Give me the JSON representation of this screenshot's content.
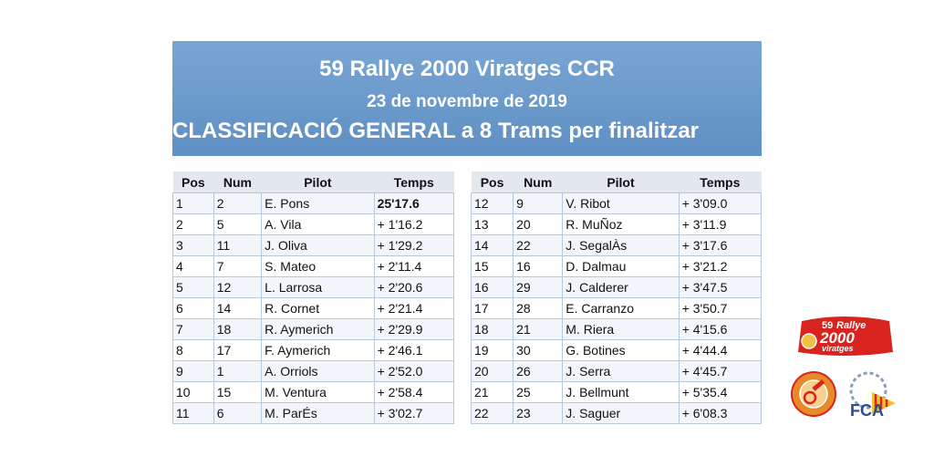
{
  "banner": {
    "title": "59 Rallye 2000 Viratges CCR",
    "date": "23 de novembre de 2019",
    "subtitle": "CLASSIFICACIÓ GENERAL a 8 Trams per finalitzar"
  },
  "columns": [
    "Pos",
    "Num",
    "Pilot",
    "Temps"
  ],
  "left_rows": [
    [
      "1",
      "2",
      "E. Pons",
      "25'17.6"
    ],
    [
      "2",
      "5",
      "A. Vila",
      "+ 1'16.2"
    ],
    [
      "3",
      "11",
      "J. Oliva",
      "+ 1'29.2"
    ],
    [
      "4",
      "7",
      "S. Mateo",
      "+ 2'11.4"
    ],
    [
      "5",
      "12",
      "L. Larrosa",
      "+ 2'20.6"
    ],
    [
      "6",
      "14",
      "R. Cornet",
      "+ 2'21.4"
    ],
    [
      "7",
      "18",
      "R. Aymerich",
      "+ 2'29.9"
    ],
    [
      "8",
      "17",
      "F. Aymerich",
      "+ 2'46.1"
    ],
    [
      "9",
      "1",
      "A. Orriols",
      "+ 2'52.0"
    ],
    [
      "10",
      "15",
      "M. Ventura",
      "+ 2'58.4"
    ],
    [
      "11",
      "6",
      "M. ParÉs",
      "+ 3'02.7"
    ]
  ],
  "right_rows": [
    [
      "12",
      "9",
      "V. Ribot",
      "+ 3'09.0"
    ],
    [
      "13",
      "20",
      "R. MuÑoz",
      "+ 3'11.9"
    ],
    [
      "14",
      "22",
      "J. SegalÀs",
      "+ 3'17.6"
    ],
    [
      "15",
      "16",
      "D. Dalmau",
      "+ 3'21.2"
    ],
    [
      "16",
      "29",
      "J. Calderer",
      "+ 3'47.5"
    ],
    [
      "17",
      "28",
      "E. Carranzo",
      "+ 3'50.7"
    ],
    [
      "18",
      "21",
      "M. Riera",
      "+ 4'15.6"
    ],
    [
      "19",
      "30",
      "G. Botines",
      "+ 4'44.4"
    ],
    [
      "20",
      "26",
      "J. Serra",
      "+ 4'45.7"
    ],
    [
      "21",
      "25",
      "J. Bellmunt",
      "+ 5'35.4"
    ],
    [
      "22",
      "23",
      "J. Saguer",
      "+ 6'08.3"
    ]
  ],
  "logos": {
    "rallye_number": "59",
    "rallye_word": "Rallye",
    "rallye_2000": "2000",
    "rallye_viratges": "viratges",
    "fca_letters": "FCA"
  },
  "colors": {
    "banner": "#6b9bcc",
    "table_border": "#b8c8dc",
    "header_bg": "#e3e8ee",
    "logo_red": "#d8231f",
    "logo_orange": "#e8892a"
  }
}
